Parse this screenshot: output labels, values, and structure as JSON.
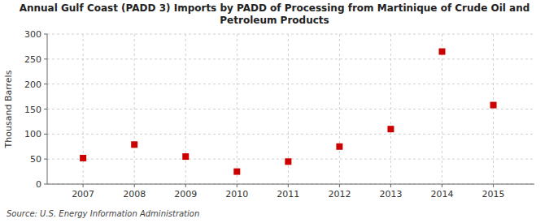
{
  "chart_data": {
    "type": "scatter",
    "title": "Annual Gulf Coast (PADD 3) Imports by PADD of Processing from Martinique of Crude Oil and\nPetroleum Products",
    "x": [
      2007,
      2008,
      2009,
      2010,
      2011,
      2012,
      2013,
      2014,
      2015
    ],
    "values": [
      52,
      79,
      55,
      25,
      45,
      75,
      110,
      265,
      158
    ],
    "ylabel": "Thousand Barrels",
    "annotations": [
      "Source: U.S. Energy Information Administration"
    ],
    "xlim": [
      2006.3,
      2015.8
    ],
    "xticks": [
      2007,
      2008,
      2009,
      2010,
      2011,
      2012,
      2013,
      2014,
      2015
    ],
    "ylim": [
      0,
      300
    ],
    "yticks": [
      0,
      50,
      100,
      150,
      200,
      250,
      300
    ],
    "color": "#cc0000",
    "marker": "square",
    "grid": true
  }
}
